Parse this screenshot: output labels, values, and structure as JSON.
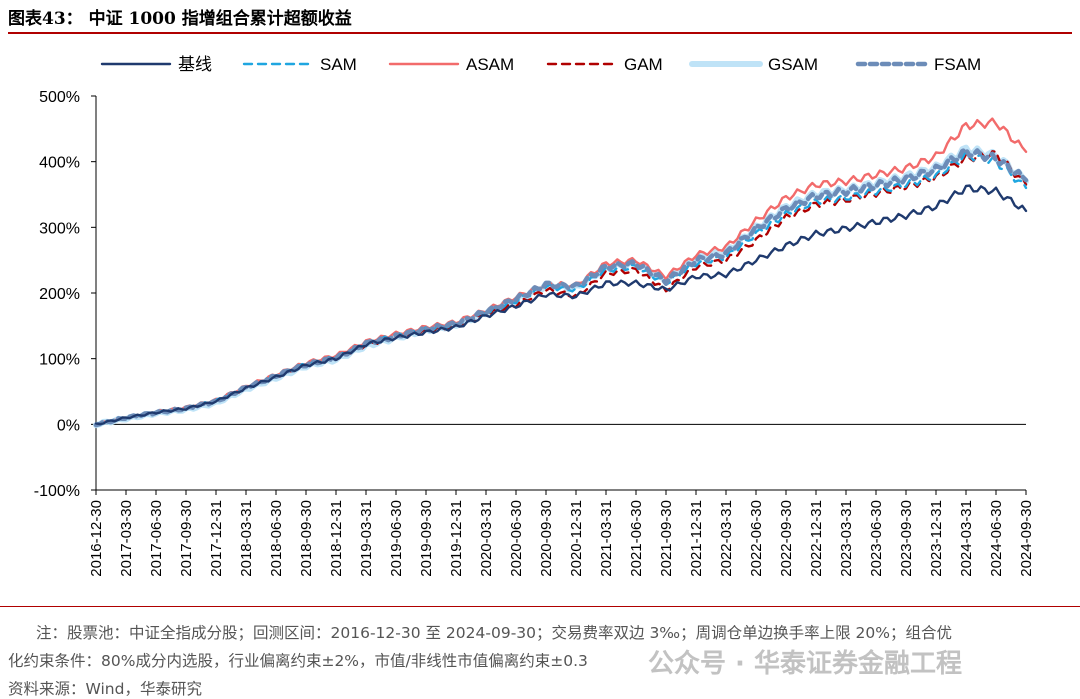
{
  "title": "图表43： 中证 1000 指增组合累计超额收益",
  "notes": {
    "line1": "注：股票池：中证全指成分股；回测区间：2016-12-30 至 2024-09-30；交易费率双边 3‰；周调仓单边换手率上限 20%；组合优",
    "line2": "化约束条件：80%成分内选股，行业偏离约束±2%，市值/非线性市值偏离约束±0.3",
    "source": "资料来源：Wind，华泰研究"
  },
  "watermark": "公众号 · 华泰证券金融工程",
  "chart_data": {
    "type": "line",
    "ylim": [
      -100,
      500
    ],
    "yticks": [
      "-100%",
      "0%",
      "100%",
      "200%",
      "300%",
      "400%",
      "500%"
    ],
    "ytick_values": [
      -100,
      0,
      100,
      200,
      300,
      400,
      500
    ],
    "categories": [
      "2016-12-30",
      "2017-03-30",
      "2017-06-30",
      "2017-09-30",
      "2017-12-31",
      "2018-03-31",
      "2018-06-30",
      "2018-09-30",
      "2018-12-31",
      "2019-03-31",
      "2019-06-30",
      "2019-09-30",
      "2019-12-31",
      "2020-03-31",
      "2020-06-30",
      "2020-09-30",
      "2020-12-31",
      "2021-03-31",
      "2021-06-30",
      "2021-09-30",
      "2021-12-31",
      "2022-03-31",
      "2022-06-30",
      "2022-09-30",
      "2022-12-31",
      "2023-03-31",
      "2023-06-30",
      "2023-09-30",
      "2023-12-31",
      "2024-03-31",
      "2024-06-30",
      "2024-09-30"
    ],
    "legend_position": "top",
    "series": [
      {
        "name": "基线",
        "color": "#1f3a6e",
        "style": "solid",
        "values": [
          0,
          10,
          18,
          24,
          35,
          55,
          72,
          90,
          100,
          122,
          132,
          140,
          148,
          165,
          180,
          198,
          195,
          215,
          215,
          205,
          225,
          228,
          250,
          272,
          290,
          298,
          308,
          318,
          332,
          360,
          355,
          325
        ]
      },
      {
        "name": "SAM",
        "color": "#1fa6e0",
        "style": "dash",
        "values": [
          0,
          10,
          18,
          25,
          36,
          56,
          74,
          92,
          102,
          124,
          135,
          145,
          152,
          170,
          188,
          210,
          205,
          235,
          240,
          215,
          245,
          255,
          290,
          320,
          340,
          345,
          355,
          365,
          378,
          410,
          400,
          360
        ]
      },
      {
        "name": "ASAM",
        "color": "#f26b6b",
        "style": "solid",
        "values": [
          0,
          10,
          19,
          26,
          37,
          58,
          76,
          94,
          105,
          126,
          138,
          148,
          156,
          174,
          194,
          214,
          212,
          245,
          250,
          225,
          258,
          270,
          310,
          345,
          365,
          370,
          380,
          390,
          408,
          455,
          460,
          415
        ]
      },
      {
        "name": "GAM",
        "color": "#b00000",
        "style": "dash",
        "values": [
          0,
          10,
          18,
          25,
          35,
          55,
          73,
          90,
          100,
          121,
          133,
          143,
          150,
          168,
          182,
          205,
          195,
          230,
          235,
          205,
          240,
          250,
          280,
          315,
          335,
          342,
          352,
          362,
          376,
          405,
          412,
          365
        ]
      },
      {
        "name": "GSAM",
        "color": "#bfe3f7",
        "style": "thick",
        "values": [
          0,
          9,
          17,
          23,
          33,
          54,
          71,
          89,
          99,
          120,
          132,
          144,
          152,
          171,
          190,
          212,
          208,
          240,
          245,
          220,
          252,
          262,
          298,
          330,
          350,
          356,
          366,
          376,
          390,
          418,
          408,
          370
        ]
      },
      {
        "name": "FSAM",
        "color": "#6c8cb8",
        "style": "dot",
        "values": [
          0,
          10,
          18,
          24,
          35,
          56,
          74,
          91,
          101,
          123,
          134,
          145,
          153,
          172,
          191,
          213,
          210,
          240,
          245,
          218,
          250,
          260,
          298,
          328,
          348,
          355,
          364,
          374,
          388,
          415,
          405,
          372
        ]
      }
    ]
  }
}
